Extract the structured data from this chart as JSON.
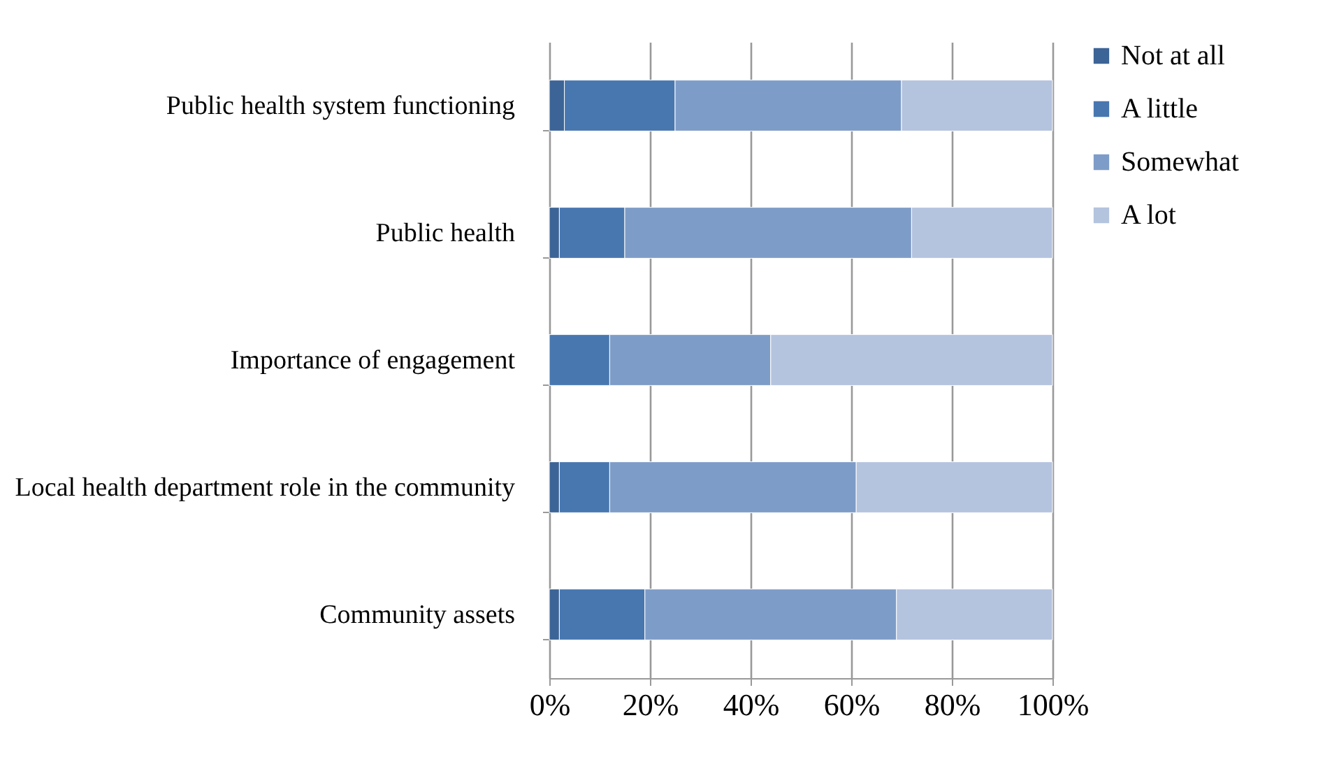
{
  "chart_data": {
    "type": "bar",
    "orientation": "horizontal",
    "stacked": true,
    "categories": [
      "Public health system functioning",
      "Public health",
      "Importance of engagement",
      "Local health department role in the community",
      "Community assets"
    ],
    "series": [
      {
        "name": "Not at all",
        "color": "#3c6496",
        "values": [
          3,
          2,
          0,
          2,
          2
        ]
      },
      {
        "name": "A little",
        "color": "#4877b0",
        "values": [
          22,
          13,
          12,
          10,
          17
        ]
      },
      {
        "name": "Somewhat",
        "color": "#7e9cc8",
        "values": [
          45,
          57,
          32,
          49,
          50
        ]
      },
      {
        "name": "A lot",
        "color": "#b4c3de",
        "values": [
          30,
          28,
          56,
          39,
          31
        ]
      }
    ],
    "xlim": [
      0,
      100
    ],
    "xticks": [
      {
        "value": 0,
        "label": "0%"
      },
      {
        "value": 20,
        "label": "20%"
      },
      {
        "value": 40,
        "label": "40%"
      },
      {
        "value": 60,
        "label": "60%"
      },
      {
        "value": 80,
        "label": "80%"
      },
      {
        "value": 100,
        "label": "100%"
      }
    ],
    "grid": "x",
    "legend": "right"
  }
}
